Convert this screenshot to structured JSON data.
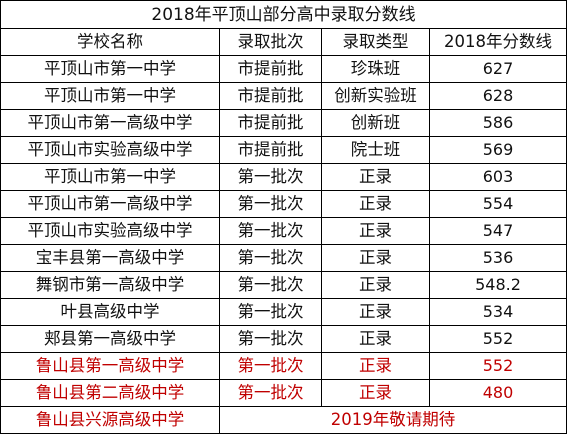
{
  "title": "2018年平顶山部分高中录取分数线",
  "headers": [
    "学校名称",
    "录取批次",
    "录取类型",
    "2018年分数线"
  ],
  "rows": [
    {
      "school": "平顶山市第一中学",
      "batch": "市提前批",
      "type": "珍珠班",
      "score": "627"
    },
    {
      "school": "平顶山市第一中学",
      "batch": "市提前批",
      "type": "创新实验班",
      "score": "628"
    },
    {
      "school": "平顶山市第一高级中学",
      "batch": "市提前批",
      "type": "创新班",
      "score": "586"
    },
    {
      "school": "平顶山市实验高级中学",
      "batch": "市提前批",
      "type": "院士班",
      "score": "569"
    },
    {
      "school": "平顶山市第一中学",
      "batch": "第一批次",
      "type": "正录",
      "score": "603"
    },
    {
      "school": "平顶山市第一高级中学",
      "batch": "第一批次",
      "type": "正录",
      "score": "554"
    },
    {
      "school": "平顶山市实验高级中学",
      "batch": "第一批次",
      "type": "正录",
      "score": "547"
    },
    {
      "school": "宝丰县第一高级中学",
      "batch": "第一批次",
      "type": "正录",
      "score": "536"
    },
    {
      "school": "舞钢市第一高级中学",
      "batch": "第一批次",
      "type": "正录",
      "score": "548.2"
    },
    {
      "school": "叶县高级中学",
      "batch": "第一批次",
      "type": "正录",
      "score": "534"
    },
    {
      "school": "郏县第一高级中学",
      "batch": "第一批次",
      "type": "正录",
      "score": "552"
    },
    {
      "school": "鲁山县第一高级中学",
      "batch": "第一批次",
      "type": "正录",
      "score": "552"
    },
    {
      "school": "鲁山县第二高级中学",
      "batch": "第一批次",
      "type": "正录",
      "score": "480"
    }
  ],
  "footer": {
    "school": "鲁山县兴源高级中学",
    "note": "2019年敬请期待"
  },
  "colors": {
    "text": "#111111",
    "highlight": "#c00000",
    "border": "#000000"
  }
}
